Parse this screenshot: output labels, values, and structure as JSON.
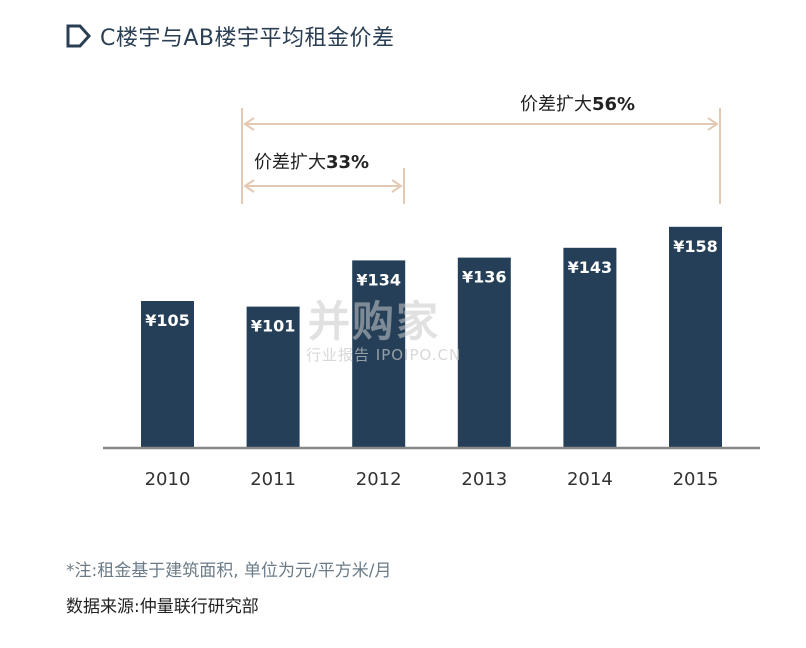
{
  "title": "C楼宇与AB楼宇平均租金价差",
  "note": "*注:租金基于建筑面积, 单位为元/平方米/月",
  "source": "数据来源:仲量联行研究部",
  "watermark": {
    "brand": "并购家",
    "sub": "行业报告 IPOIPO.CN"
  },
  "colors": {
    "bar": "#243f57",
    "axis": "#888888",
    "annotation": "#e3c9b4",
    "title_icon": "#2b3f54"
  },
  "chart_data": {
    "type": "bar",
    "title": "C楼宇与AB楼宇平均租金价差",
    "categories": [
      "2010",
      "2011",
      "2012",
      "2013",
      "2014",
      "2015"
    ],
    "values": [
      105,
      101,
      134,
      136,
      143,
      158
    ],
    "value_labels": [
      "¥105",
      "¥101",
      "¥134",
      "¥136",
      "¥143",
      "¥158"
    ],
    "ylim": [
      0,
      170
    ],
    "grid": false,
    "legend": "none",
    "annotations": [
      {
        "from": "2011",
        "to": "2012",
        "prefix": "价差扩大",
        "value": "33%"
      },
      {
        "from": "2011",
        "to": "2015",
        "prefix": "价差扩大",
        "value": "56%"
      }
    ]
  }
}
